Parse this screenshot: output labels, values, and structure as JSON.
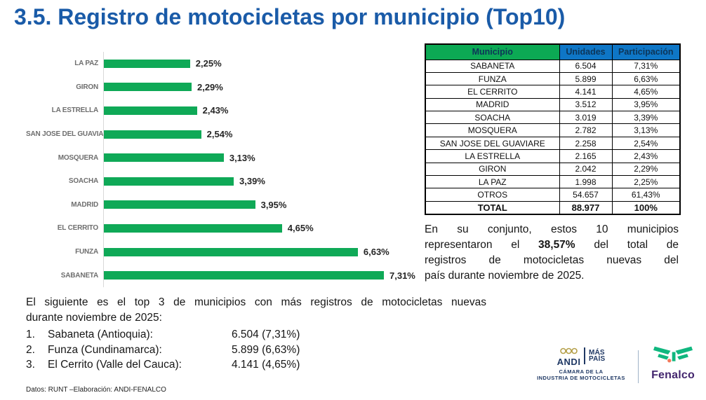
{
  "title": "3.5. Registro de motocicletas por municipio (Top10)",
  "chart_data": {
    "type": "bar",
    "orientation": "horizontal",
    "categories": [
      "LA PAZ",
      "GIRON",
      "LA ESTRELLA",
      "SAN JOSE DEL GUAVIARE",
      "MOSQUERA",
      "SOACHA",
      "MADRID",
      "EL CERRITO",
      "FUNZA",
      "SABANETA"
    ],
    "values": [
      2.25,
      2.29,
      2.43,
      2.54,
      3.13,
      3.39,
      3.95,
      4.65,
      6.63,
      7.31
    ],
    "value_labels": [
      "2,25%",
      "2,29%",
      "2,43%",
      "2,54%",
      "3,13%",
      "3,39%",
      "3,95%",
      "4,65%",
      "6,63%",
      "7,31%"
    ],
    "bar_color": "#0fa957",
    "xlim": [
      0,
      7.31
    ],
    "grid": false,
    "legend": false,
    "title": "",
    "xlabel": "",
    "ylabel": ""
  },
  "table": {
    "headers": [
      "Municipio",
      "Unidades",
      "Participación"
    ],
    "header_colors": [
      "#0ca954",
      "#0e76c6",
      "#0e76c6"
    ],
    "header_text_color": "#0d3558",
    "rows": [
      [
        "SABANETA",
        "6.504",
        "7,31%"
      ],
      [
        "FUNZA",
        "5.899",
        "6,63%"
      ],
      [
        "EL CERRITO",
        "4.141",
        "4,65%"
      ],
      [
        "MADRID",
        "3.512",
        "3,95%"
      ],
      [
        "SOACHA",
        "3.019",
        "3,39%"
      ],
      [
        "MOSQUERA",
        "2.782",
        "3,13%"
      ],
      [
        "SAN JOSE DEL GUAVIARE",
        "2.258",
        "2,54%"
      ],
      [
        "LA ESTRELLA",
        "2.165",
        "2,43%"
      ],
      [
        "GIRON",
        "2.042",
        "2,29%"
      ],
      [
        "LA PAZ",
        "1.998",
        "2,25%"
      ],
      [
        "OTROS",
        "54.657",
        "61,43%"
      ],
      [
        "TOTAL",
        "88.977",
        "100%"
      ]
    ]
  },
  "summary": {
    "line1": "En su conjunto, estos 10 municipios",
    "line2_before": "representaron el ",
    "line2_bold": "38,57%",
    "line2_after": " del total de",
    "line3": "registros de motocicletas nuevas del",
    "line4": "país durante noviembre de 2025."
  },
  "bottom": {
    "intro_line1": "El siguiente es el top 3 de municipios con más registros de motocicletas nuevas",
    "intro_line2": "durante noviembre de 2025:",
    "top3": [
      {
        "number": "1.",
        "name": "Sabaneta (Antioquia):",
        "value": "6.504 (7,31%)"
      },
      {
        "number": "2.",
        "name": "Funza (Cundinamarca):",
        "value": "5.899 (6,63%)"
      },
      {
        "number": "3.",
        "name": "El Cerrito (Valle del Cauca):",
        "value": "4.141 (4,65%)"
      }
    ],
    "datos_note": "Datos: RUNT –Elaboración: ANDI-FENALCO"
  },
  "footer_logos": {
    "andi": {
      "word": "ANDI",
      "mas": "MÁS",
      "pais": "PAÍS",
      "subtitle_line1": "CÁMARA DE LA",
      "subtitle_line2": "INDUSTRIA DE MOTOCICLETAS",
      "navy": "#1f3864",
      "gold": "#b5a04a"
    },
    "fenalco": {
      "word": "Fenalco",
      "purple": "#43266e",
      "green": "#10b77f",
      "coral": "#f4795b"
    }
  },
  "colors": {
    "title_blue": "#1a5ba8",
    "bar_green": "#0fa957",
    "header_green": "#0ca954",
    "header_blue": "#0e76c6"
  }
}
